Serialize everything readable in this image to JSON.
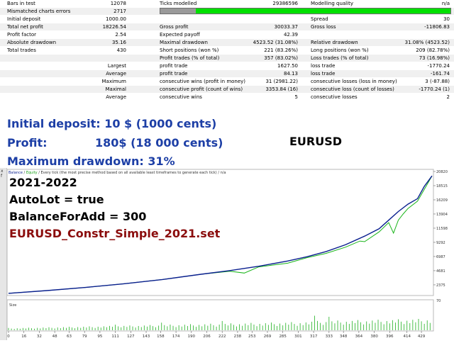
{
  "report": {
    "rows": [
      {
        "cells": [
          "Bars in test",
          "12078",
          "Ticks modelled",
          "29386596",
          "Modelling quality",
          "n/a"
        ]
      },
      {
        "cells": [
          "Mismatched charts errors",
          "2717"
        ]
      },
      {
        "cells": [
          "Initial deposit",
          "1000.00",
          "",
          "",
          "Spread",
          "30"
        ]
      },
      {
        "cells": [
          "Total net profit",
          "18226.54",
          "Gross profit",
          "30033.37",
          "Gross loss",
          "-11806.83"
        ]
      },
      {
        "cells": [
          "Profit factor",
          "2.54",
          "Expected payoff",
          "42.39",
          "",
          ""
        ]
      },
      {
        "cells": [
          "Absolute drawdown",
          "35.16",
          "Maximal drawdown",
          "4523.52 (31.08%)",
          "Relative drawdown",
          "31.08% (4523.52)"
        ]
      },
      {
        "cells": [
          "Total trades",
          "430",
          "Short positions (won %)",
          "221 (83.26%)",
          "Long positions (won %)",
          "209 (82.78%)"
        ]
      },
      {
        "cells": [
          "",
          "",
          "Profit trades (% of total)",
          "357 (83.02%)",
          "Loss trades (% of total)",
          "73 (16.98%)"
        ]
      },
      {
        "cells": [
          "",
          "Largest",
          "profit trade",
          "1627.50",
          "loss trade",
          "-1770.24"
        ]
      },
      {
        "cells": [
          "",
          "Average",
          "profit trade",
          "84.13",
          "loss trade",
          "-161.74"
        ]
      },
      {
        "cells": [
          "",
          "Maximum",
          "consecutive wins (profit in money)",
          "31 (2981.22)",
          "consecutive losses (loss in money)",
          "3 (-87.88)"
        ]
      },
      {
        "cells": [
          "",
          "Maximal",
          "consecutive profit (count of wins)",
          "3353.84 (16)",
          "consecutive loss (count of losses)",
          "-1770.24 (1)"
        ]
      },
      {
        "cells": [
          "",
          "Average",
          "consecutive wins",
          "5",
          "consecutive losses",
          "2"
        ]
      }
    ]
  },
  "summary": {
    "initial_deposit": "Initial deposit: 10 $ (1000 cents)",
    "profit_label": "Profit:",
    "profit_value": "180$ (18 000 cents)",
    "max_drawdown": "Maximum drawdown: 31%",
    "pair": "EURUSD"
  },
  "chart_panel": {
    "legend_balance": "Balance",
    "legend_equity": "Equity",
    "legend_rest": " / Every tick (the most precise method based on all available least timeframes to generate each tick) / n/a",
    "sidebar_letters": [
      "x",
      "f"
    ],
    "overlay": {
      "period": "2021-2022",
      "autolot": "AutoLot = true",
      "balance_for_add": "BalanceForAdd = 300",
      "setfile": "EURUSD_Constr_Simple_2021.set"
    },
    "size_label": "Size",
    "size_axis_tick": "70",
    "colors": {
      "balance": "#0a1f8f",
      "equity": "#18b418",
      "volume": "#20b020"
    }
  },
  "chart_data": {
    "type": "line",
    "title": "",
    "xlabel": "",
    "ylabel": "",
    "yticks": [
      20820,
      18515,
      16209,
      13904,
      11598,
      9292,
      6987,
      4681,
      2375
    ],
    "xticks": [
      0,
      16,
      32,
      48,
      63,
      79,
      95,
      111,
      127,
      143,
      158,
      174,
      190,
      206,
      222,
      238,
      253,
      269,
      285,
      301,
      317,
      333,
      348,
      364,
      380,
      396,
      414,
      429
    ],
    "xlim": [
      0,
      440
    ],
    "ylim": [
      1100,
      20820
    ],
    "series": [
      {
        "name": "Balance",
        "x": [
          0,
          40,
          80,
          120,
          160,
          200,
          230,
          260,
          290,
          310,
          330,
          350,
          370,
          385,
          395,
          405,
          415,
          425,
          432,
          440
        ],
        "values": [
          1000,
          1450,
          1950,
          2550,
          3250,
          4100,
          4700,
          5400,
          6250,
          6950,
          7800,
          8900,
          10300,
          11500,
          12900,
          14300,
          15500,
          16400,
          18400,
          20100
        ]
      },
      {
        "name": "Equity",
        "x": [
          0,
          40,
          80,
          120,
          160,
          200,
          230,
          245,
          260,
          290,
          310,
          330,
          350,
          365,
          370,
          385,
          395,
          400,
          405,
          410,
          415,
          425,
          432,
          440
        ],
        "values": [
          1000,
          1450,
          1950,
          2550,
          3250,
          4100,
          4600,
          4300,
          5300,
          5900,
          6800,
          7500,
          8500,
          9500,
          9400,
          11000,
          12500,
          10800,
          12900,
          13900,
          14800,
          16000,
          17900,
          20100
        ]
      }
    ]
  }
}
